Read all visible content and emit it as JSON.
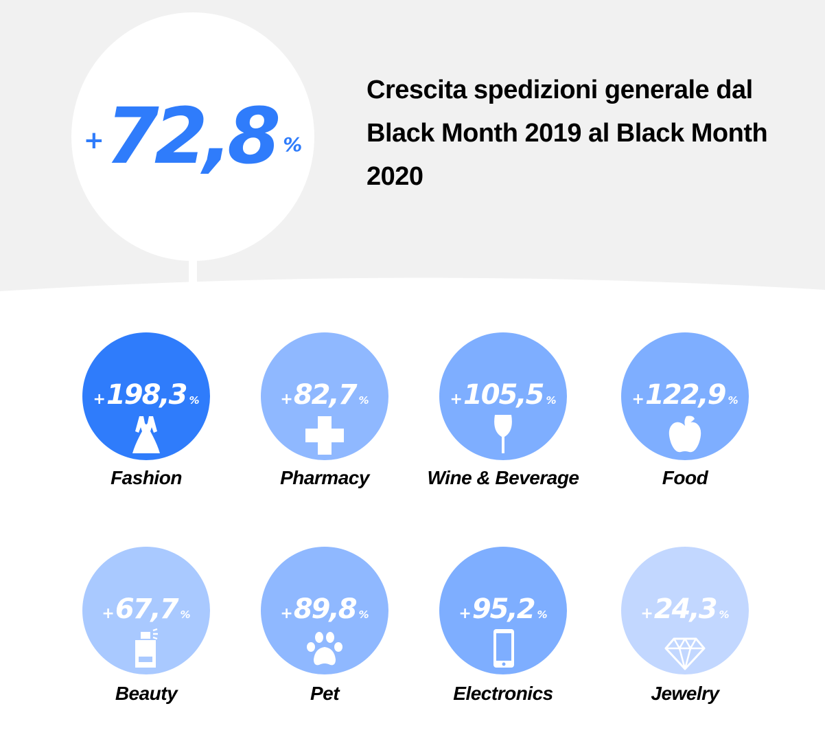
{
  "colors": {
    "background": "#f1f1f1",
    "page": "#ffffff",
    "accent": "#2f7cfb",
    "label": "#000000"
  },
  "chart_data": {
    "type": "bubble",
    "headline": {
      "value": "72,8",
      "sign": "+",
      "unit": "%",
      "title": "Crescita spedizioni generale dal Black Month 2019 al Black Month 2020"
    },
    "categories": [
      {
        "id": "fashion",
        "label": "Fashion",
        "value": "198,3",
        "sign": "+",
        "unit": "%",
        "icon": "dress-icon",
        "color": "#2f7cfb"
      },
      {
        "id": "pharmacy",
        "label": "Pharmacy",
        "value": "82,7",
        "sign": "+",
        "unit": "%",
        "icon": "medical-cross-icon",
        "color": "#8fb8ff"
      },
      {
        "id": "wine",
        "label": "Wine & Beverage",
        "value": "105,5",
        "sign": "+",
        "unit": "%",
        "icon": "wine-glass-icon",
        "color": "#7eaeff"
      },
      {
        "id": "food",
        "label": "Food",
        "value": "122,9",
        "sign": "+",
        "unit": "%",
        "icon": "apple-icon",
        "color": "#7eaeff"
      },
      {
        "id": "beauty",
        "label": "Beauty",
        "value": "67,7",
        "sign": "+",
        "unit": "%",
        "icon": "perfume-icon",
        "color": "#a9c9ff"
      },
      {
        "id": "pet",
        "label": "Pet",
        "value": "89,8",
        "sign": "+",
        "unit": "%",
        "icon": "paw-icon",
        "color": "#8fb8ff"
      },
      {
        "id": "electronics",
        "label": "Electronics",
        "value": "95,2",
        "sign": "+",
        "unit": "%",
        "icon": "smartphone-icon",
        "color": "#7eaeff"
      },
      {
        "id": "jewelry",
        "label": "Jewelry",
        "value": "24,3",
        "sign": "+",
        "unit": "%",
        "icon": "diamond-icon",
        "color": "#c2d7ff"
      }
    ]
  }
}
